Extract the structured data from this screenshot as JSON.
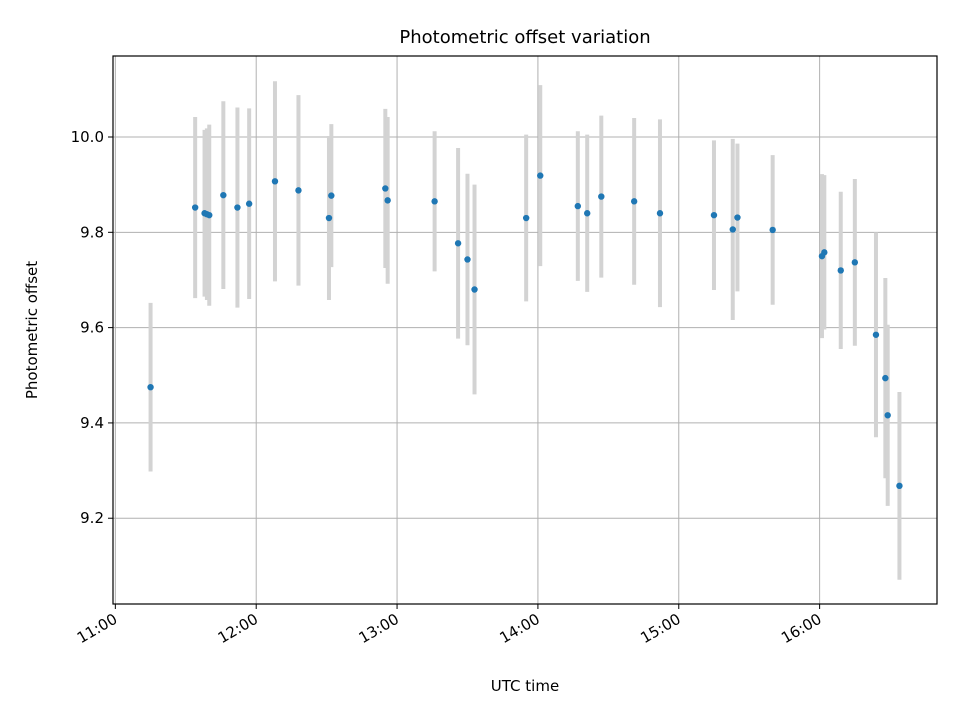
{
  "chart_data": {
    "type": "scatter",
    "title": "Photometric offset variation",
    "xlabel": "UTC time",
    "ylabel": "Photometric offset",
    "x_ticks": [
      "11:00",
      "12:00",
      "13:00",
      "14:00",
      "15:00",
      "16:00"
    ],
    "y_ticks": [
      "9.2",
      "9.4",
      "9.6",
      "9.8",
      "10.0"
    ],
    "xlim": [
      "10:59",
      "16:50"
    ],
    "ylim": [
      9.02,
      10.17
    ],
    "grid": true,
    "colors": {
      "point": "#1f77b4",
      "errorbar": "#d3d3d3",
      "grid": "#b0b0b0"
    },
    "points": [
      {
        "x": "11:15",
        "y": 9.475,
        "err": 0.177
      },
      {
        "x": "11:34",
        "y": 9.852,
        "err": 0.19
      },
      {
        "x": "11:38",
        "y": 9.84,
        "err": 0.175
      },
      {
        "x": "11:39",
        "y": 9.838,
        "err": 0.18
      },
      {
        "x": "11:40",
        "y": 9.836,
        "err": 0.19
      },
      {
        "x": "11:46",
        "y": 9.878,
        "err": 0.197
      },
      {
        "x": "11:52",
        "y": 9.852,
        "err": 0.21
      },
      {
        "x": "11:57",
        "y": 9.86,
        "err": 0.2
      },
      {
        "x": "12:08",
        "y": 9.907,
        "err": 0.21
      },
      {
        "x": "12:18",
        "y": 9.888,
        "err": 0.2
      },
      {
        "x": "12:31",
        "y": 9.83,
        "err": 0.172
      },
      {
        "x": "12:32",
        "y": 9.877,
        "err": 0.15
      },
      {
        "x": "12:55",
        "y": 9.892,
        "err": 0.167
      },
      {
        "x": "12:56",
        "y": 9.867,
        "err": 0.175
      },
      {
        "x": "13:16",
        "y": 9.865,
        "err": 0.147
      },
      {
        "x": "13:26",
        "y": 9.777,
        "err": 0.2
      },
      {
        "x": "13:30",
        "y": 9.743,
        "err": 0.18
      },
      {
        "x": "13:33",
        "y": 9.68,
        "err": 0.22
      },
      {
        "x": "13:55",
        "y": 9.83,
        "err": 0.175
      },
      {
        "x": "14:01",
        "y": 9.919,
        "err": 0.19
      },
      {
        "x": "14:17",
        "y": 9.855,
        "err": 0.157
      },
      {
        "x": "14:21",
        "y": 9.84,
        "err": 0.165
      },
      {
        "x": "14:27",
        "y": 9.875,
        "err": 0.17
      },
      {
        "x": "14:41",
        "y": 9.865,
        "err": 0.175
      },
      {
        "x": "14:52",
        "y": 9.84,
        "err": 0.197
      },
      {
        "x": "15:15",
        "y": 9.836,
        "err": 0.157
      },
      {
        "x": "15:23",
        "y": 9.806,
        "err": 0.19
      },
      {
        "x": "15:25",
        "y": 9.831,
        "err": 0.155
      },
      {
        "x": "15:40",
        "y": 9.805,
        "err": 0.157
      },
      {
        "x": "16:01",
        "y": 9.75,
        "err": 0.172
      },
      {
        "x": "16:02",
        "y": 9.758,
        "err": 0.162
      },
      {
        "x": "16:09",
        "y": 9.72,
        "err": 0.165
      },
      {
        "x": "16:15",
        "y": 9.737,
        "err": 0.175
      },
      {
        "x": "16:24",
        "y": 9.585,
        "err": 0.215
      },
      {
        "x": "16:28",
        "y": 9.494,
        "err": 0.21
      },
      {
        "x": "16:29",
        "y": 9.416,
        "err": 0.19
      },
      {
        "x": "16:34",
        "y": 9.268,
        "err": 0.197
      }
    ]
  }
}
